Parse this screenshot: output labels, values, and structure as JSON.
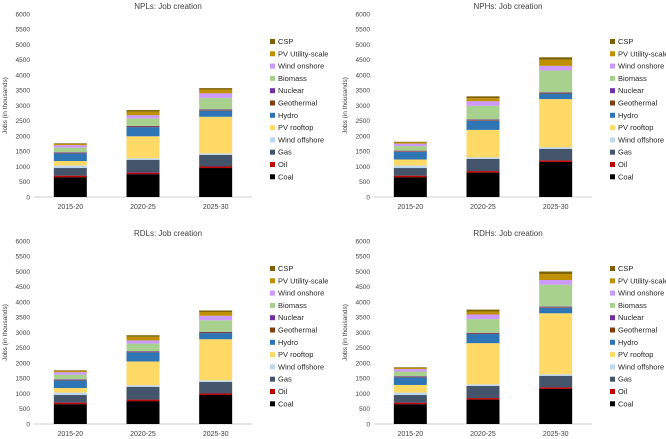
{
  "chart_data": [
    {
      "type": "bar",
      "stacked": true,
      "title": "NPLs: Job creation",
      "ylabel": "Jobs (in thousands)",
      "ylim": [
        0,
        6000
      ],
      "yticks": [
        0,
        500,
        1000,
        1500,
        2000,
        2500,
        3000,
        3500,
        4000,
        4500,
        5000,
        5500,
        6000
      ],
      "categories": [
        "2015-20",
        "2020-25",
        "2025-30"
      ],
      "series": [
        {
          "name": "Coal",
          "color": "#000000",
          "values": [
            650,
            750,
            950
          ]
        },
        {
          "name": "Oil",
          "color": "#c00000",
          "values": [
            50,
            50,
            50
          ]
        },
        {
          "name": "Gas",
          "color": "#44546a",
          "values": [
            250,
            420,
            380
          ]
        },
        {
          "name": "Wind offshore",
          "color": "#bdd7ee",
          "values": [
            80,
            50,
            50
          ]
        },
        {
          "name": "PV rooftop",
          "color": "#ffd966",
          "values": [
            150,
            720,
            1200
          ]
        },
        {
          "name": "Hydro",
          "color": "#2e75b6",
          "values": [
            250,
            300,
            200
          ]
        },
        {
          "name": "Geothermal",
          "color": "#843c0c",
          "values": [
            20,
            20,
            20
          ]
        },
        {
          "name": "Nuclear",
          "color": "#7030a0",
          "values": [
            20,
            20,
            20
          ]
        },
        {
          "name": "Biomass",
          "color": "#a9d18e",
          "values": [
            150,
            250,
            380
          ]
        },
        {
          "name": "Wind onshore",
          "color": "#cc99ff",
          "values": [
            80,
            100,
            150
          ]
        },
        {
          "name": "PV Utility-scale",
          "color": "#bf9000",
          "values": [
            40,
            120,
            120
          ]
        },
        {
          "name": "CSP",
          "color": "#7f6000",
          "values": [
            20,
            50,
            50
          ]
        }
      ]
    },
    {
      "type": "bar",
      "stacked": true,
      "title": "NPHs: Job creation",
      "ylabel": "Jobs (in thousands)",
      "ylim": [
        0,
        6000
      ],
      "yticks": [
        0,
        500,
        1000,
        1500,
        2000,
        2500,
        3000,
        3500,
        4000,
        4500,
        5000,
        5500,
        6000
      ],
      "categories": [
        "2015-20",
        "2020-25",
        "2025-30"
      ],
      "series": [
        {
          "name": "Coal",
          "color": "#000000",
          "values": [
            650,
            800,
            1150
          ]
        },
        {
          "name": "Oil",
          "color": "#c00000",
          "values": [
            50,
            50,
            50
          ]
        },
        {
          "name": "Gas",
          "color": "#44546a",
          "values": [
            250,
            400,
            380
          ]
        },
        {
          "name": "Wind offshore",
          "color": "#bdd7ee",
          "values": [
            80,
            50,
            50
          ]
        },
        {
          "name": "PV rooftop",
          "color": "#ffd966",
          "values": [
            200,
            900,
            1580
          ]
        },
        {
          "name": "Hydro",
          "color": "#2e75b6",
          "values": [
            250,
            300,
            180
          ]
        },
        {
          "name": "Geothermal",
          "color": "#843c0c",
          "values": [
            20,
            20,
            20
          ]
        },
        {
          "name": "Nuclear",
          "color": "#7030a0",
          "values": [
            20,
            20,
            20
          ]
        },
        {
          "name": "Biomass",
          "color": "#a9d18e",
          "values": [
            150,
            450,
            720
          ]
        },
        {
          "name": "Wind onshore",
          "color": "#cc99ff",
          "values": [
            80,
            150,
            150
          ]
        },
        {
          "name": "PV Utility-scale",
          "color": "#bf9000",
          "values": [
            40,
            100,
            200
          ]
        },
        {
          "name": "CSP",
          "color": "#7f6000",
          "values": [
            20,
            60,
            80
          ]
        }
      ]
    },
    {
      "type": "bar",
      "stacked": true,
      "title": "RDLs: Job creation",
      "ylabel": "Jobs (in thousands)",
      "ylim": [
        0,
        6000
      ],
      "yticks": [
        0,
        500,
        1000,
        1500,
        2000,
        2500,
        3000,
        3500,
        4000,
        4500,
        5000,
        5500,
        6000
      ],
      "categories": [
        "2015-20",
        "2020-25",
        "2025-30"
      ],
      "series": [
        {
          "name": "Coal",
          "color": "#000000",
          "values": [
            650,
            750,
            950
          ]
        },
        {
          "name": "Oil",
          "color": "#c00000",
          "values": [
            50,
            50,
            50
          ]
        },
        {
          "name": "Gas",
          "color": "#44546a",
          "values": [
            250,
            420,
            380
          ]
        },
        {
          "name": "Wind offshore",
          "color": "#bdd7ee",
          "values": [
            80,
            50,
            50
          ]
        },
        {
          "name": "PV rooftop",
          "color": "#ffd966",
          "values": [
            150,
            780,
            1350
          ]
        },
        {
          "name": "Hydro",
          "color": "#2e75b6",
          "values": [
            250,
            300,
            200
          ]
        },
        {
          "name": "Geothermal",
          "color": "#843c0c",
          "values": [
            20,
            20,
            20
          ]
        },
        {
          "name": "Nuclear",
          "color": "#7030a0",
          "values": [
            20,
            20,
            20
          ]
        },
        {
          "name": "Biomass",
          "color": "#a9d18e",
          "values": [
            150,
            250,
            380
          ]
        },
        {
          "name": "Wind onshore",
          "color": "#cc99ff",
          "values": [
            80,
            100,
            150
          ]
        },
        {
          "name": "PV Utility-scale",
          "color": "#bf9000",
          "values": [
            40,
            120,
            120
          ]
        },
        {
          "name": "CSP",
          "color": "#7f6000",
          "values": [
            20,
            50,
            50
          ]
        }
      ]
    },
    {
      "type": "bar",
      "stacked": true,
      "title": "RDHs: Job creation",
      "ylabel": "Jobs (in thousands)",
      "ylim": [
        0,
        6000
      ],
      "yticks": [
        0,
        500,
        1000,
        1500,
        2000,
        2500,
        3000,
        3500,
        4000,
        4500,
        5000,
        5500,
        6000
      ],
      "categories": [
        "2015-20",
        "2020-25",
        "2025-30"
      ],
      "series": [
        {
          "name": "Coal",
          "color": "#000000",
          "values": [
            650,
            800,
            1150
          ]
        },
        {
          "name": "Oil",
          "color": "#c00000",
          "values": [
            50,
            50,
            50
          ]
        },
        {
          "name": "Gas",
          "color": "#44546a",
          "values": [
            250,
            400,
            380
          ]
        },
        {
          "name": "Wind offshore",
          "color": "#bdd7ee",
          "values": [
            80,
            50,
            50
          ]
        },
        {
          "name": "PV rooftop",
          "color": "#ffd966",
          "values": [
            250,
            1350,
            2000
          ]
        },
        {
          "name": "Hydro",
          "color": "#2e75b6",
          "values": [
            250,
            300,
            180
          ]
        },
        {
          "name": "Geothermal",
          "color": "#843c0c",
          "values": [
            20,
            20,
            20
          ]
        },
        {
          "name": "Nuclear",
          "color": "#7030a0",
          "values": [
            20,
            20,
            20
          ]
        },
        {
          "name": "Biomass",
          "color": "#a9d18e",
          "values": [
            150,
            450,
            720
          ]
        },
        {
          "name": "Wind onshore",
          "color": "#cc99ff",
          "values": [
            80,
            150,
            150
          ]
        },
        {
          "name": "PV Utility-scale",
          "color": "#bf9000",
          "values": [
            40,
            100,
            200
          ]
        },
        {
          "name": "CSP",
          "color": "#7f6000",
          "values": [
            20,
            60,
            80
          ]
        }
      ]
    }
  ]
}
